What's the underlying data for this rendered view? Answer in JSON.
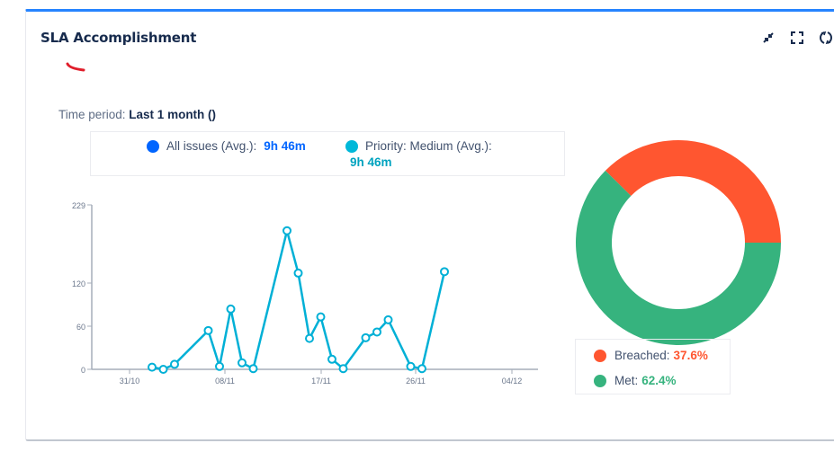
{
  "header": {
    "title": "SLA Accomplishment",
    "actions": [
      {
        "name": "minimize-icon",
        "label": "Minimize"
      },
      {
        "name": "fullscreen-icon",
        "label": "Full screen"
      },
      {
        "name": "refresh-icon",
        "label": "Refresh"
      }
    ]
  },
  "time_period": {
    "label": "Time period:",
    "value": "Last 1 month ()"
  },
  "line_legend": [
    {
      "label": "All issues (Avg.):",
      "value": "9h 46m",
      "color": "#0065ff"
    },
    {
      "label": "Priority: Medium (Avg.):",
      "value": "9h 46m",
      "color": "#00b8d9"
    }
  ],
  "pie_legend": [
    {
      "label": "Breached:",
      "value": "37.6%",
      "color": "#ff5630"
    },
    {
      "label": "Met:",
      "value": "62.4%",
      "color": "#36b37e"
    }
  ],
  "colors": {
    "accent": "#2684ff",
    "line": "#00b0d6",
    "breached": "#ff5630",
    "met": "#36b37e",
    "axis": "#a5adba"
  },
  "chart_data": [
    {
      "type": "line",
      "title": "",
      "xlabel": "",
      "ylabel": "",
      "y_ticks": [
        0,
        60,
        120,
        229
      ],
      "ylim": [
        0,
        229
      ],
      "x_ticks": [
        "31/10",
        "08/11",
        "17/11",
        "26/11",
        "04/12"
      ],
      "grid": false,
      "series": [
        {
          "name": "Priority: Medium (Avg.)",
          "x": [
            "02/11",
            "03/11",
            "04/11",
            "07/11",
            "08/11",
            "09/11",
            "10/11",
            "11/11",
            "14/11",
            "15/11",
            "16/11",
            "17/11",
            "18/11",
            "19/11",
            "21/11",
            "22/11",
            "23/11",
            "25/11",
            "26/11",
            "28/11"
          ],
          "values": [
            3,
            0,
            7,
            54,
            4,
            84,
            9,
            1,
            193,
            134,
            43,
            73,
            14,
            1,
            44,
            52,
            69,
            4,
            1,
            136
          ]
        }
      ]
    },
    {
      "type": "pie",
      "donut": true,
      "categories": [
        "Breached",
        "Met"
      ],
      "values": [
        37.6,
        62.4
      ],
      "colors": [
        "#ff5630",
        "#36b37e"
      ]
    }
  ]
}
